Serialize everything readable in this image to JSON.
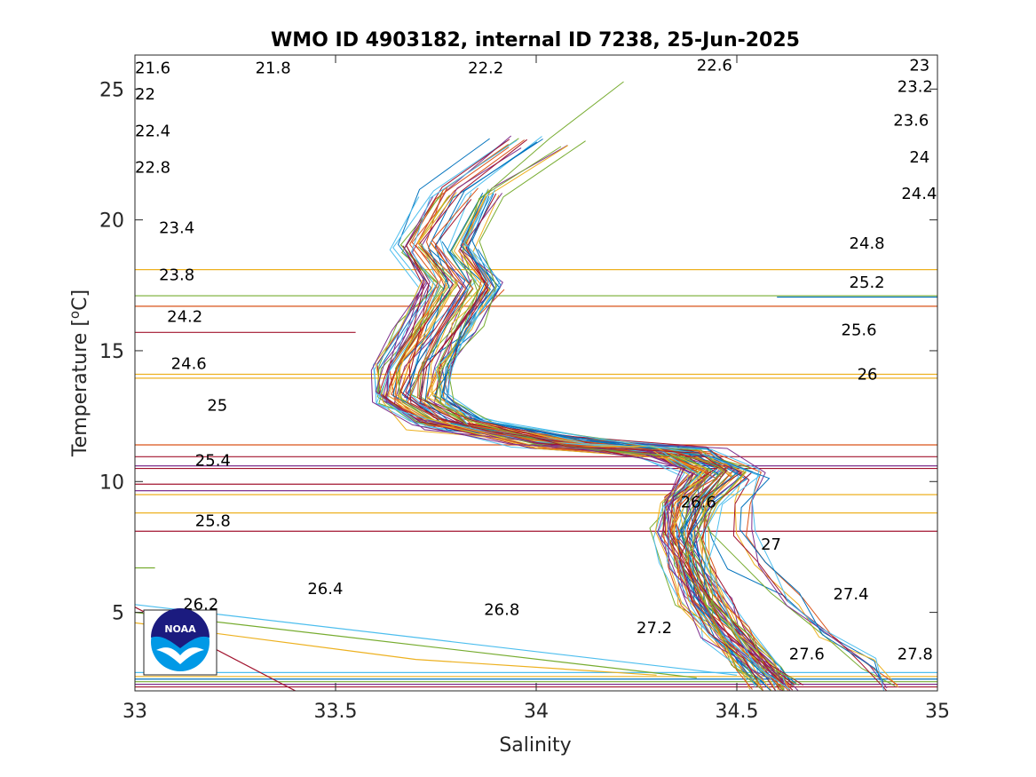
{
  "chart_data": {
    "type": "line",
    "title": "WMO ID 4903182, internal ID 7238, 25-Jun-2025",
    "xlabel": "Salinity",
    "ylabel_main": "Temperature [",
    "ylabel_sup": "o",
    "ylabel_end": "C]",
    "xlim": [
      33,
      35
    ],
    "ylim": [
      2,
      26.3
    ],
    "x_ticks": [
      33,
      33.5,
      34,
      34.5,
      35
    ],
    "x_tick_labels": [
      "33",
      "33.5",
      "34",
      "34.5",
      "35"
    ],
    "y_ticks": [
      5,
      10,
      15,
      20,
      25
    ],
    "y_tick_labels": [
      "5",
      "10",
      "15",
      "20",
      "25"
    ],
    "isopycnals": [
      {
        "label": "21.6",
        "x": 33.0,
        "y": 25.6
      },
      {
        "label": "21.8",
        "x": 33.3,
        "y": 25.6
      },
      {
        "label": "22",
        "x": 33.0,
        "y": 24.6
      },
      {
        "label": "22.2",
        "x": 33.83,
        "y": 25.6
      },
      {
        "label": "22.4",
        "x": 33.0,
        "y": 23.2
      },
      {
        "label": "22.6",
        "x": 34.4,
        "y": 25.7
      },
      {
        "label": "22.8",
        "x": 33.0,
        "y": 21.8
      },
      {
        "label": "23",
        "x": 34.93,
        "y": 25.7
      },
      {
        "label": "23.2",
        "x": 34.9,
        "y": 24.9
      },
      {
        "label": "23.4",
        "x": 33.06,
        "y": 19.5
      },
      {
        "label": "23.6",
        "x": 34.89,
        "y": 23.6
      },
      {
        "label": "23.8",
        "x": 33.06,
        "y": 17.7
      },
      {
        "label": "24",
        "x": 34.93,
        "y": 22.2
      },
      {
        "label": "24.2",
        "x": 33.08,
        "y": 16.1
      },
      {
        "label": "24.4",
        "x": 34.91,
        "y": 20.8
      },
      {
        "label": "24.6",
        "x": 33.09,
        "y": 14.3
      },
      {
        "label": "24.8",
        "x": 34.78,
        "y": 18.9
      },
      {
        "label": "25",
        "x": 33.18,
        "y": 12.7
      },
      {
        "label": "25.2",
        "x": 34.78,
        "y": 17.4
      },
      {
        "label": "25.4",
        "x": 33.15,
        "y": 10.6
      },
      {
        "label": "25.6",
        "x": 34.76,
        "y": 15.6
      },
      {
        "label": "25.8",
        "x": 33.15,
        "y": 8.3
      },
      {
        "label": "26",
        "x": 34.8,
        "y": 13.9
      },
      {
        "label": "26.2",
        "x": 33.12,
        "y": 5.1
      },
      {
        "label": "26.4",
        "x": 33.43,
        "y": 5.7
      },
      {
        "label": "26.6",
        "x": 34.36,
        "y": 9.0
      },
      {
        "label": "26.8",
        "x": 33.87,
        "y": 4.9
      },
      {
        "label": "27",
        "x": 34.56,
        "y": 7.4
      },
      {
        "label": "27.2",
        "x": 34.25,
        "y": 4.2
      },
      {
        "label": "27.4",
        "x": 34.74,
        "y": 5.5
      },
      {
        "label": "27.6",
        "x": 34.63,
        "y": 3.2
      },
      {
        "label": "27.8",
        "x": 34.9,
        "y": 3.2
      }
    ],
    "profile_colors": [
      "#0072BD",
      "#D95319",
      "#EDB120",
      "#7E2F8E",
      "#77AC30",
      "#4DBEEE",
      "#A2142F"
    ],
    "horizontal_traces": [
      {
        "y": 18.1,
        "x_start": 33.0,
        "x_end": 35.0,
        "color": "#EDB120"
      },
      {
        "y": 17.1,
        "x_start": 33.0,
        "x_end": 35.0,
        "color": "#77AC30"
      },
      {
        "y": 17.05,
        "x_start": 34.6,
        "x_end": 35.0,
        "color": "#0072BD"
      },
      {
        "y": 16.7,
        "x_start": 33.0,
        "x_end": 35.0,
        "color": "#D95319"
      },
      {
        "y": 15.7,
        "x_start": 33.0,
        "x_end": 33.55,
        "color": "#A2142F"
      },
      {
        "y": 14.1,
        "x_start": 33.0,
        "x_end": 35.0,
        "color": "#EDB120"
      },
      {
        "y": 13.95,
        "x_start": 33.0,
        "x_end": 35.0,
        "color": "#EDB120"
      },
      {
        "y": 11.4,
        "x_start": 33.0,
        "x_end": 35.0,
        "color": "#D95319"
      },
      {
        "y": 10.95,
        "x_start": 33.0,
        "x_end": 35.0,
        "color": "#A2142F"
      },
      {
        "y": 10.6,
        "x_start": 33.0,
        "x_end": 35.0,
        "color": "#7E2F8E"
      },
      {
        "y": 10.5,
        "x_start": 33.0,
        "x_end": 35.0,
        "color": "#A2142F"
      },
      {
        "y": 9.9,
        "x_start": 33.0,
        "x_end": 34.35,
        "color": "#A2142F"
      },
      {
        "y": 9.65,
        "x_start": 33.0,
        "x_end": 34.35,
        "color": "#7E2F8E"
      },
      {
        "y": 9.5,
        "x_start": 33.0,
        "x_end": 35.0,
        "color": "#EDB120"
      },
      {
        "y": 8.8,
        "x_start": 33.0,
        "x_end": 35.0,
        "color": "#EDB120"
      },
      {
        "y": 8.1,
        "x_start": 33.0,
        "x_end": 35.0,
        "color": "#A2142F"
      },
      {
        "y": 6.7,
        "x_start": 33.0,
        "x_end": 33.05,
        "color": "#77AC30"
      },
      {
        "y": 2.7,
        "x_start": 33.0,
        "x_end": 35.0,
        "color": "#4DBEEE"
      },
      {
        "y": 2.55,
        "x_start": 33.0,
        "x_end": 35.0,
        "color": "#EDB120"
      },
      {
        "y": 2.45,
        "x_start": 33.0,
        "x_end": 35.0,
        "color": "#0072BD"
      },
      {
        "y": 2.35,
        "x_start": 33.0,
        "x_end": 35.0,
        "color": "#77AC30"
      },
      {
        "y": 2.25,
        "x_start": 33.0,
        "x_end": 35.0,
        "color": "#7E2F8E"
      },
      {
        "y": 2.15,
        "x_start": 33.0,
        "x_end": 35.0,
        "color": "#A2142F"
      }
    ],
    "sloped_traces": [
      {
        "points": [
          [
            33.0,
            5.3
          ],
          [
            34.5,
            2.6
          ]
        ],
        "color": "#4DBEEE"
      },
      {
        "points": [
          [
            33.0,
            5.0
          ],
          [
            34.4,
            2.5
          ]
        ],
        "color": "#77AC30"
      },
      {
        "points": [
          [
            33.0,
            4.6
          ],
          [
            33.7,
            3.2
          ],
          [
            34.3,
            2.6
          ]
        ],
        "color": "#EDB120"
      },
      {
        "points": [
          [
            33.0,
            5.2
          ],
          [
            33.4,
            2.0
          ]
        ],
        "color": "#A2142F"
      }
    ],
    "logo": {
      "text": "NOAA",
      "colors": [
        "#1B1B7F",
        "#0099E6",
        "#FFFFFF"
      ]
    }
  }
}
